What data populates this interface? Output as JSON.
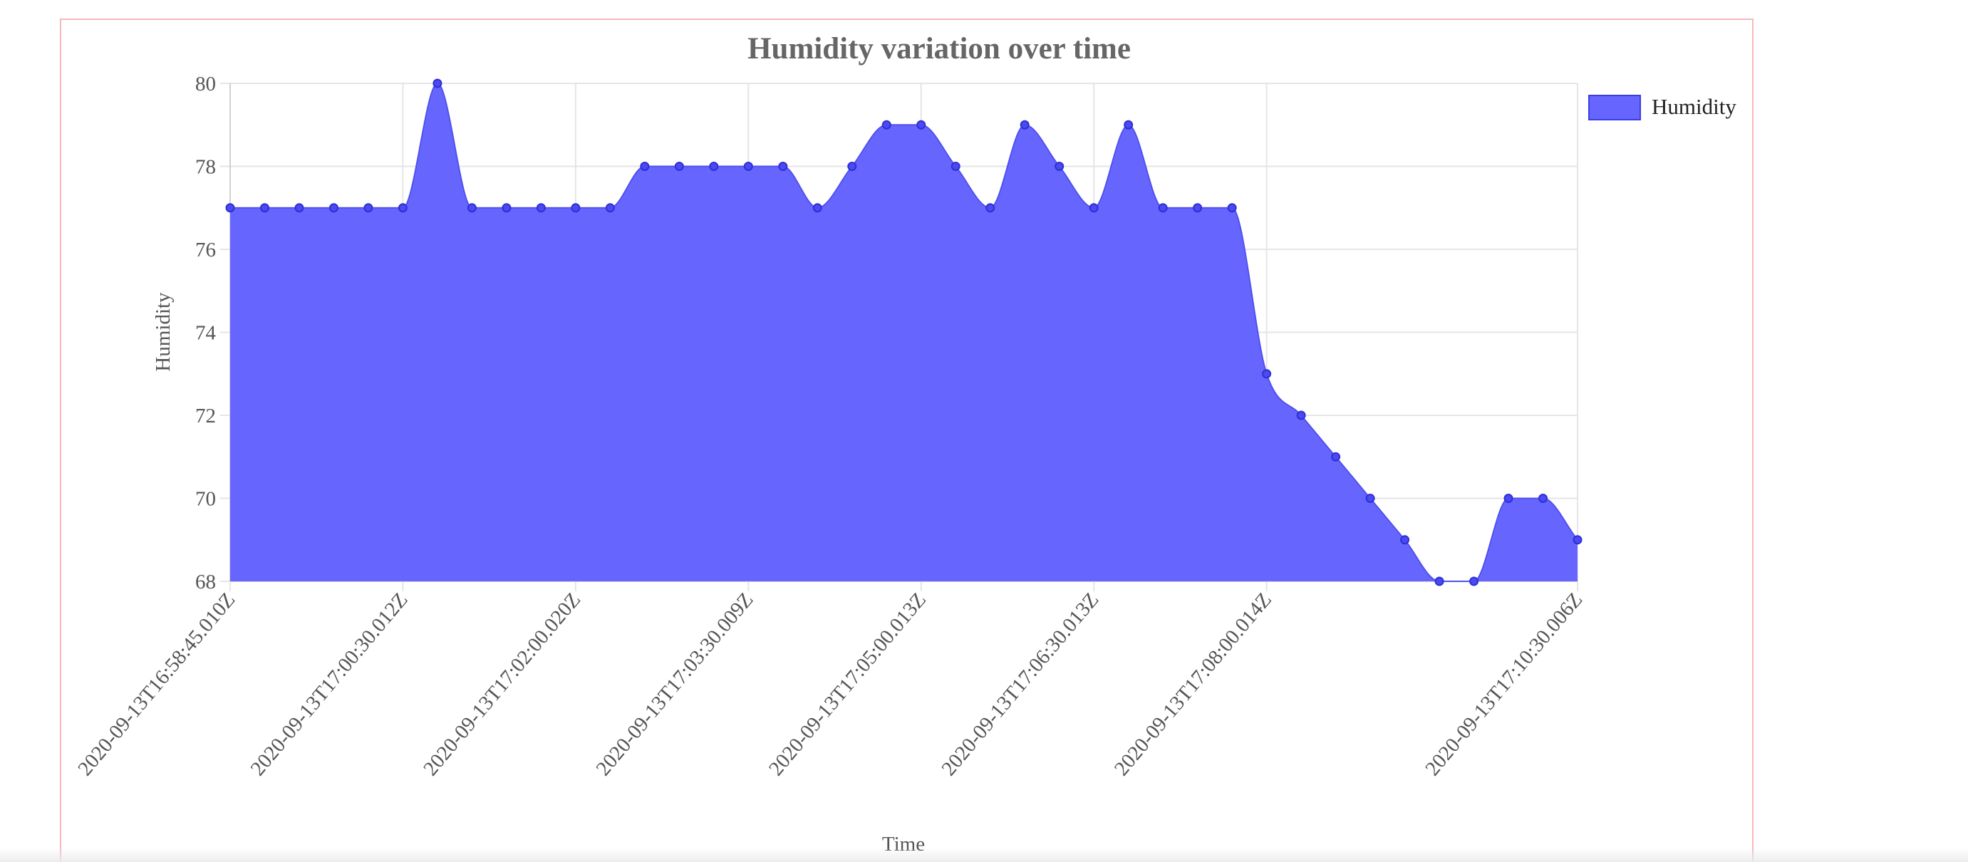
{
  "chart_data": {
    "type": "area",
    "title": "Humidity variation over time",
    "xlabel": "Time",
    "ylabel": "Humidity",
    "ylim": [
      68,
      80
    ],
    "y_ticks": [
      68,
      70,
      72,
      74,
      76,
      78,
      80
    ],
    "x_tick_labels": [
      "2020-09-13T16:58:45.010Z",
      "2020-09-13T17:00:30.012Z",
      "2020-09-13T17:02:00.020Z",
      "2020-09-13T17:03:30.009Z",
      "2020-09-13T17:05:00.013Z",
      "2020-09-13T17:06:30.013Z",
      "2020-09-13T17:08:00.014Z",
      "2020-09-13T17:10:30.006Z"
    ],
    "x_tick_indices": [
      0,
      5,
      10,
      15,
      20,
      25,
      30,
      39
    ],
    "grid": true,
    "legend": {
      "position": "right",
      "entries": [
        "Humidity"
      ]
    },
    "series": [
      {
        "name": "Humidity",
        "color": "#6666ff",
        "values": [
          77,
          77,
          77,
          77,
          77,
          77,
          80,
          77,
          77,
          77,
          77,
          77,
          78,
          78,
          78,
          78,
          78,
          77,
          78,
          79,
          79,
          78,
          77,
          79,
          78,
          77,
          79,
          77,
          77,
          77,
          73,
          72,
          71,
          70,
          69,
          68,
          68,
          70,
          70,
          69
        ]
      }
    ]
  }
}
